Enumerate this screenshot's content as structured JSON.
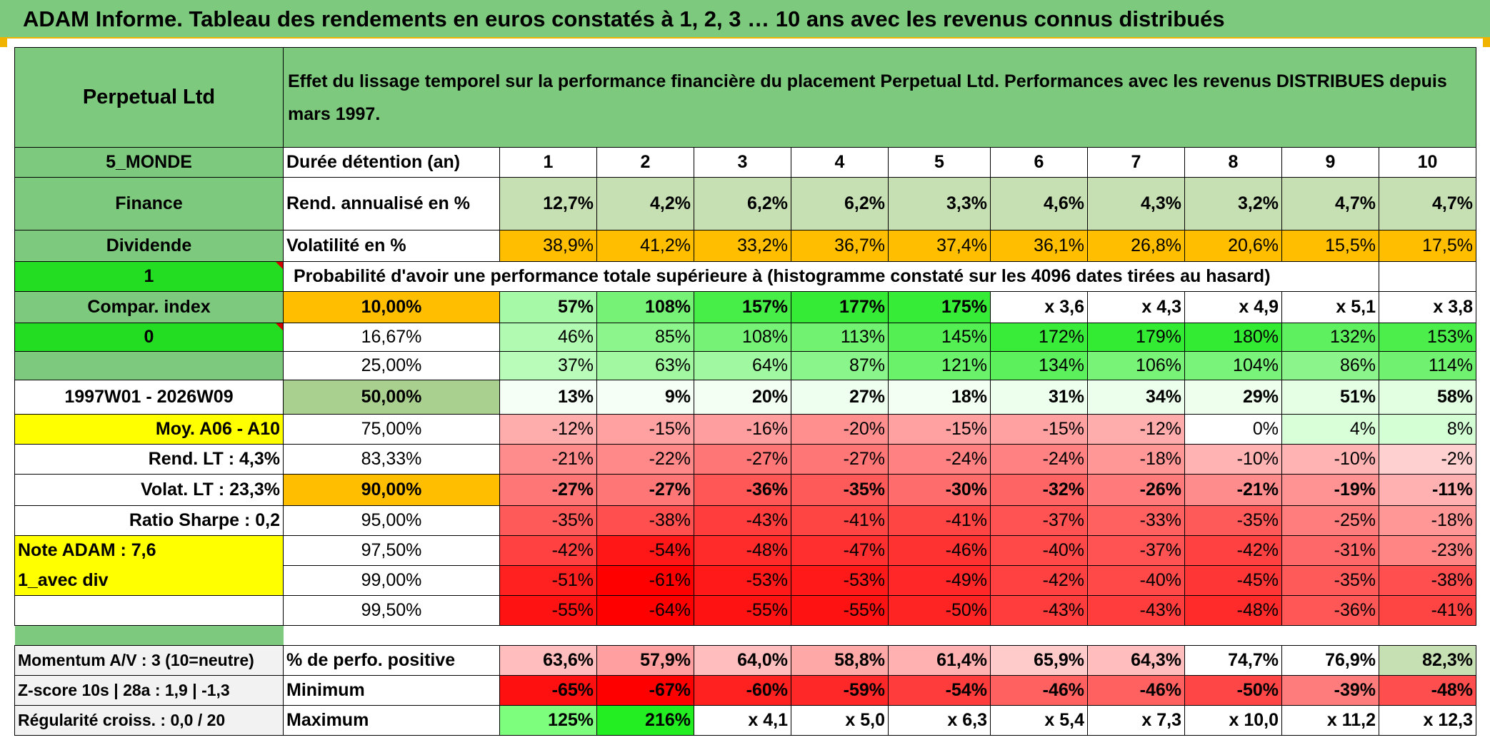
{
  "title": "ADAM Informe. Tableau des rendements en euros constatés à 1, 2, 3 … 10 ans avec les revenus connus distribués",
  "fund_name": "Perpetual Ltd",
  "description": "Effet du lissage temporel sur la performance financière du placement Perpetual Ltd. Performances avec les revenus DISTRIBUES depuis mars 1997.",
  "left_labels": {
    "zone": "5_MONDE",
    "sector": "Finance",
    "income": "Dividende",
    "flag1": "1",
    "compar": "Compar. index",
    "flag0": "0",
    "period": "1997W01 - 2026W09",
    "moy": "Moy. A06 - A10",
    "rend_lt": "Rend. LT :   4,3%",
    "volat_lt": "Volat. LT :   23,3%",
    "sharpe": "Ratio Sharpe :    0,2",
    "note": "Note ADAM : 7,6",
    "avec_div": "1_avec div",
    "momentum": "Momentum A/V : 3 (10=neutre)",
    "zscore": "Z-score 10s | 28a : 1,9 | -1,3",
    "regularite": "Régularité croiss. : 0,0 / 20"
  },
  "header": {
    "duree_label": "Durée détention (an)",
    "years": [
      "1",
      "2",
      "3",
      "4",
      "5",
      "6",
      "7",
      "8",
      "9",
      "10"
    ]
  },
  "rend": {
    "label": "Rend. annualisé en %",
    "values": [
      "12,7%",
      "4,2%",
      "6,2%",
      "6,2%",
      "3,3%",
      "4,6%",
      "4,3%",
      "3,2%",
      "4,7%",
      "4,7%"
    ]
  },
  "volat": {
    "label": "Volatilité en %",
    "values": [
      "38,9%",
      "41,2%",
      "33,2%",
      "36,7%",
      "37,4%",
      "36,1%",
      "26,8%",
      "20,6%",
      "15,5%",
      "17,5%"
    ]
  },
  "proba_label": "Probabilité d'avoir une performance totale supérieure à (histogramme constaté sur les 4096 dates tirées au hasard)",
  "percentiles": [
    {
      "label": "10,00%",
      "values": [
        "57%",
        "108%",
        "157%",
        "177%",
        "175%",
        "x 3,6",
        "x 4,3",
        "x 4,9",
        "x 5,1",
        "x 3,8"
      ]
    },
    {
      "label": "16,67%",
      "values": [
        "46%",
        "85%",
        "108%",
        "113%",
        "145%",
        "172%",
        "179%",
        "180%",
        "132%",
        "153%"
      ]
    },
    {
      "label": "25,00%",
      "values": [
        "37%",
        "63%",
        "64%",
        "87%",
        "121%",
        "134%",
        "106%",
        "104%",
        "86%",
        "114%"
      ]
    },
    {
      "label": "50,00%",
      "values": [
        "13%",
        "9%",
        "20%",
        "27%",
        "18%",
        "31%",
        "34%",
        "29%",
        "51%",
        "58%"
      ]
    },
    {
      "label": "75,00%",
      "values": [
        "-12%",
        "-15%",
        "-16%",
        "-20%",
        "-15%",
        "-15%",
        "-12%",
        "0%",
        "4%",
        "8%"
      ]
    },
    {
      "label": "83,33%",
      "values": [
        "-21%",
        "-22%",
        "-27%",
        "-27%",
        "-24%",
        "-24%",
        "-18%",
        "-10%",
        "-10%",
        "-2%"
      ]
    },
    {
      "label": "90,00%",
      "values": [
        "-27%",
        "-27%",
        "-36%",
        "-35%",
        "-30%",
        "-32%",
        "-26%",
        "-21%",
        "-19%",
        "-11%"
      ]
    },
    {
      "label": "95,00%",
      "values": [
        "-35%",
        "-38%",
        "-43%",
        "-41%",
        "-41%",
        "-37%",
        "-33%",
        "-35%",
        "-25%",
        "-18%"
      ]
    },
    {
      "label": "97,50%",
      "values": [
        "-42%",
        "-54%",
        "-48%",
        "-47%",
        "-46%",
        "-40%",
        "-37%",
        "-42%",
        "-31%",
        "-23%"
      ]
    },
    {
      "label": "99,00%",
      "values": [
        "-51%",
        "-61%",
        "-53%",
        "-53%",
        "-49%",
        "-42%",
        "-40%",
        "-45%",
        "-35%",
        "-38%"
      ]
    },
    {
      "label": "99,50%",
      "values": [
        "-55%",
        "-64%",
        "-55%",
        "-55%",
        "-50%",
        "-43%",
        "-43%",
        "-48%",
        "-36%",
        "-41%"
      ]
    }
  ],
  "positive": {
    "label": "% de perfo. positive",
    "values": [
      "63,6%",
      "57,9%",
      "64,0%",
      "58,8%",
      "61,4%",
      "65,9%",
      "64,3%",
      "74,7%",
      "76,9%",
      "82,3%"
    ]
  },
  "minimum": {
    "label": "Minimum",
    "values": [
      "-65%",
      "-67%",
      "-60%",
      "-59%",
      "-54%",
      "-46%",
      "-46%",
      "-50%",
      "-39%",
      "-48%"
    ]
  },
  "maximum": {
    "label": "Maximum",
    "values": [
      "125%",
      "216%",
      "x 4,1",
      "x 5,0",
      "x 6,3",
      "x 5,4",
      "x 7,3",
      "x 10,0",
      "x 11,2",
      "x 12,3"
    ]
  },
  "colors": {
    "title_green": "#7dc97d",
    "label_green": "#7dc97d",
    "bright_green": "#22dd22",
    "orange": "#ffbf00",
    "yellow": "#ffff00",
    "red_text": "#d00000",
    "rend_green": "#c6e0b4"
  }
}
